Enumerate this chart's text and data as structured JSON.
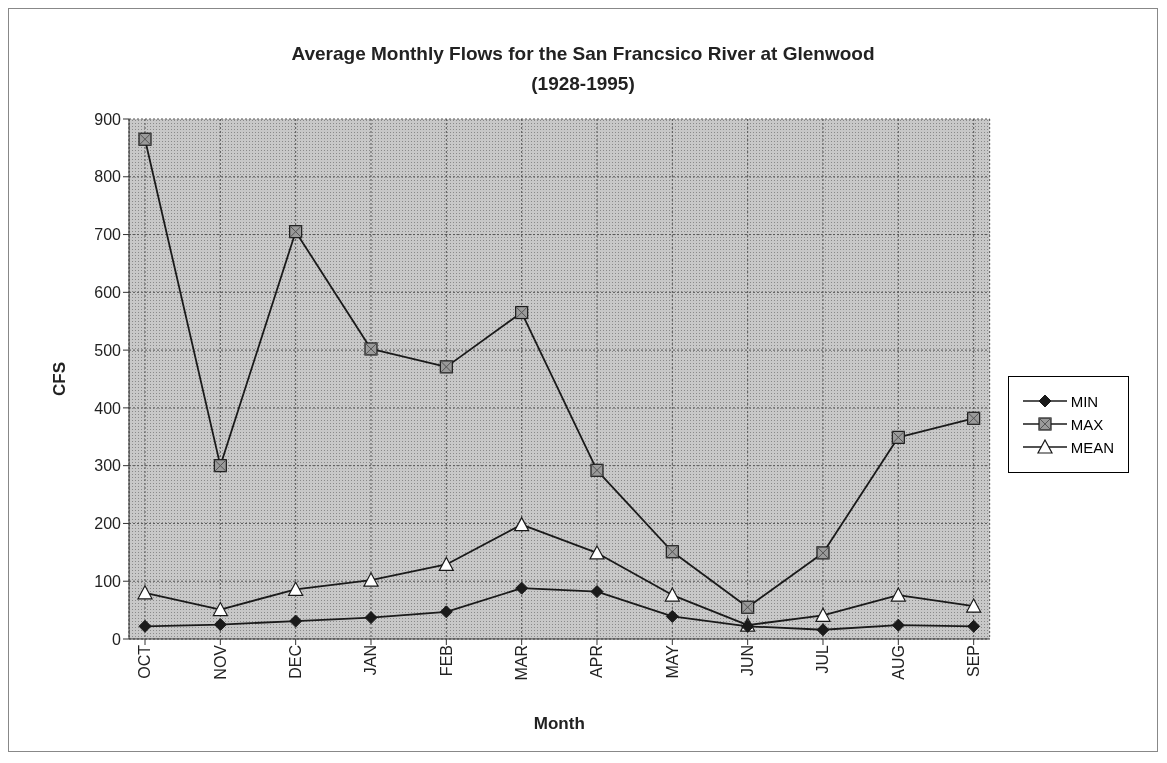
{
  "chart_data": {
    "type": "line",
    "title": "Average Monthly Flows for the San Francsico River at Glenwood (1928-1995)",
    "xlabel": "Month",
    "ylabel": "CFS",
    "categories": [
      "OCT",
      "NOV",
      "DEC",
      "JAN",
      "FEB",
      "MAR",
      "APR",
      "MAY",
      "JUN",
      "JUL",
      "AUG",
      "SEP"
    ],
    "series": [
      {
        "name": "MIN",
        "color": "#1a1a1a",
        "marker": "diamond",
        "values": [
          22,
          25,
          31,
          37,
          47,
          88,
          82,
          39,
          22,
          16,
          24,
          22
        ]
      },
      {
        "name": "MAX",
        "color": "#1a1a1a",
        "marker": "square",
        "values": [
          865,
          300,
          705,
          502,
          471,
          565,
          292,
          151,
          55,
          149,
          349,
          382
        ]
      },
      {
        "name": "MEAN",
        "color": "#1a1a1a",
        "marker": "triangle",
        "values": [
          80,
          51,
          86,
          102,
          129,
          198,
          149,
          76,
          24,
          41,
          76,
          57
        ]
      }
    ],
    "ylim": [
      0,
      900
    ],
    "yticks": [
      0,
      100,
      200,
      300,
      400,
      500,
      600,
      700,
      800,
      900
    ],
    "grid": true,
    "legend": "right",
    "line_style": "solid"
  }
}
